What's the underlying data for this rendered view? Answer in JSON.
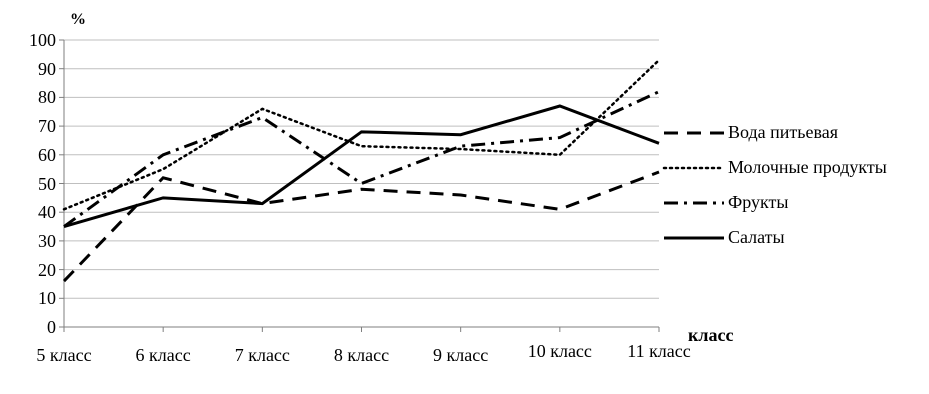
{
  "chart_data": {
    "type": "line",
    "title": "",
    "ylabel": "%",
    "xlabel": "класс",
    "ylim": [
      0,
      100
    ],
    "yticks": [
      "0",
      "10",
      "20",
      "30",
      "40",
      "50",
      "60",
      "70",
      "80",
      "90",
      "100"
    ],
    "categories": [
      "5 класс",
      "6 класс",
      "7 класс",
      "8 класс",
      "9 класс",
      "10 класс",
      "11 класс"
    ],
    "grid": "horizontal",
    "legend_position": "right",
    "series": [
      {
        "name": "Вода питьевая",
        "style": "dashed",
        "values": [
          16,
          52,
          43,
          48,
          46,
          41,
          54
        ]
      },
      {
        "name": "Молочные продукты",
        "style": "dotted",
        "values": [
          41,
          55,
          76,
          63,
          62,
          60,
          93
        ]
      },
      {
        "name": "Фрукты",
        "style": "dash-dot",
        "values": [
          35,
          60,
          73,
          50,
          63,
          66,
          82
        ]
      },
      {
        "name": "Салаты",
        "style": "solid",
        "values": [
          35,
          45,
          43,
          68,
          67,
          77,
          64
        ]
      }
    ]
  }
}
